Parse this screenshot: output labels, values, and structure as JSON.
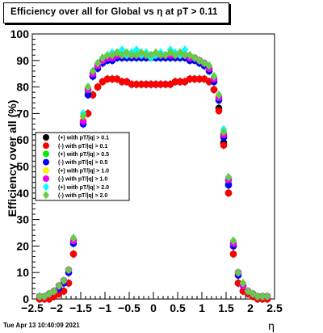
{
  "title": "Efficiency over all for Global vs   η at pT > 0.11",
  "timestamp": "Tue Apr 13 10:40:09 2021",
  "chart_data": {
    "type": "scatter",
    "title": "Efficiency over all for Global vs   η at pT > 0.11",
    "xlabel": "η",
    "ylabel": "Efficiency over all (%)",
    "xlim": [
      -2.5,
      2.5
    ],
    "ylim": [
      0,
      100
    ],
    "x_ticks": [
      "−2.5",
      "−2",
      "−1.5",
      "−1",
      "−0.5",
      "0",
      "0.5",
      "1",
      "1.5",
      "2",
      "2.5"
    ],
    "x_tick_values": [
      -2.5,
      -2,
      -1.5,
      -1,
      -0.5,
      0,
      0.5,
      1,
      1.5,
      2,
      2.5
    ],
    "y_ticks": [
      "0",
      "10",
      "20",
      "30",
      "40",
      "50",
      "60",
      "70",
      "80",
      "90",
      "100"
    ],
    "y_tick_values": [
      0,
      10,
      20,
      30,
      40,
      50,
      60,
      70,
      80,
      90,
      100
    ],
    "grid": false,
    "legend_position": "left-middle",
    "eta": [
      -2.35,
      -2.25,
      -2.15,
      -2.05,
      -1.95,
      -1.85,
      -1.75,
      -1.65,
      -1.55,
      -1.45,
      -1.35,
      -1.25,
      -1.15,
      -1.05,
      -0.95,
      -0.85,
      -0.75,
      -0.65,
      -0.55,
      -0.45,
      -0.35,
      -0.25,
      -0.15,
      -0.05,
      0.05,
      0.15,
      0.25,
      0.35,
      0.45,
      0.55,
      0.65,
      0.75,
      0.85,
      0.95,
      1.05,
      1.15,
      1.25,
      1.35,
      1.45,
      1.55,
      1.65,
      1.75,
      1.85,
      1.95,
      2.05,
      2.15,
      2.25,
      2.35
    ],
    "series": [
      {
        "name": "(+) with pT/|q| > 0.1",
        "color": "#000000",
        "marker": "circle",
        "values": [
          0,
          0,
          0,
          1,
          2,
          3,
          6,
          17,
          42,
          60,
          70,
          77,
          80,
          82,
          83,
          83,
          83,
          82,
          82,
          81,
          81,
          81,
          81,
          81,
          81,
          81,
          81,
          81,
          82,
          82,
          82,
          83,
          83,
          83,
          83,
          82,
          79,
          72,
          59,
          40,
          17,
          6,
          3,
          2,
          1,
          0,
          0,
          0
        ]
      },
      {
        "name": "(-) with pT/|q| > 0.1",
        "color": "#ff0000",
        "marker": "circle",
        "values": [
          0,
          0,
          0,
          1,
          2,
          3,
          6,
          17,
          41,
          60,
          70,
          77,
          80,
          82,
          83,
          83,
          83,
          82,
          82,
          81,
          81,
          81,
          81,
          81,
          81,
          81,
          81,
          81,
          82,
          82,
          82,
          83,
          83,
          83,
          83,
          82,
          79,
          71,
          58,
          40,
          17,
          6,
          3,
          2,
          1,
          0,
          0,
          0
        ]
      },
      {
        "name": "(+) with pT/|q| > 0.5",
        "color": "#00ee00",
        "marker": "circle",
        "values": [
          1,
          1,
          2,
          3,
          4,
          6,
          10,
          21,
          48,
          67,
          78,
          84,
          87,
          89,
          90,
          90,
          91,
          91,
          91,
          91,
          91,
          91,
          91,
          91,
          91,
          91,
          91,
          91,
          91,
          91,
          91,
          90,
          90,
          89,
          88,
          86,
          82,
          75,
          62,
          44,
          20,
          9,
          5,
          3,
          2,
          1,
          1,
          1
        ]
      },
      {
        "name": "(-) with pT/|q| > 0.5",
        "color": "#0000ff",
        "marker": "circle",
        "values": [
          1,
          1,
          2,
          3,
          4,
          6,
          10,
          21,
          47,
          66,
          77,
          84,
          87,
          89,
          90,
          90,
          91,
          91,
          91,
          91,
          91,
          91,
          91,
          91,
          91,
          91,
          91,
          91,
          91,
          91,
          91,
          90,
          90,
          89,
          88,
          86,
          82,
          75,
          61,
          43,
          20,
          9,
          5,
          3,
          2,
          1,
          1,
          1
        ]
      },
      {
        "name": "(+) with pT/|q| > 1.0",
        "color": "#f5f500",
        "marker": "circle",
        "values": [
          1,
          1,
          2,
          3,
          5,
          7,
          11,
          22,
          49,
          68,
          79,
          85,
          88,
          90,
          91,
          91,
          92,
          92,
          92,
          92,
          92,
          92,
          92,
          92,
          92,
          92,
          92,
          92,
          92,
          92,
          92,
          91,
          91,
          90,
          89,
          87,
          83,
          76,
          63,
          45,
          21,
          10,
          5,
          3,
          2,
          1,
          1,
          1
        ]
      },
      {
        "name": "(-) with pT/|q| > 1.0",
        "color": "#ee00ee",
        "marker": "circle",
        "values": [
          1,
          1,
          2,
          3,
          5,
          7,
          11,
          22,
          48,
          67,
          79,
          85,
          88,
          90,
          91,
          91,
          92,
          92,
          92,
          92,
          92,
          92,
          92,
          92,
          92,
          92,
          92,
          92,
          92,
          92,
          92,
          91,
          91,
          90,
          89,
          87,
          83,
          76,
          62,
          45,
          21,
          10,
          5,
          3,
          2,
          1,
          1,
          1
        ]
      },
      {
        "name": "(+) with pT/|q| > 2.0",
        "color": "#00ffff",
        "marker": "diamond",
        "values": [
          1,
          1,
          2,
          3,
          5,
          7,
          11,
          23,
          50,
          70,
          80,
          86,
          89,
          91,
          92,
          93,
          93,
          94,
          92,
          93,
          94,
          92,
          93,
          91,
          92,
          93,
          92,
          94,
          93,
          92,
          94,
          92,
          91,
          90,
          89,
          88,
          84,
          77,
          64,
          46,
          22,
          10,
          6,
          3,
          2,
          1,
          1,
          1
        ]
      },
      {
        "name": "(-) with pT/|q| > 2.0",
        "color": "#66cc44",
        "marker": "diamond",
        "values": [
          1,
          1,
          2,
          3,
          5,
          7,
          11,
          23,
          50,
          69,
          80,
          86,
          89,
          91,
          92,
          92,
          93,
          92,
          93,
          92,
          92,
          93,
          92,
          92,
          93,
          92,
          92,
          93,
          92,
          93,
          92,
          92,
          91,
          90,
          89,
          88,
          84,
          77,
          63,
          46,
          22,
          10,
          6,
          3,
          2,
          1,
          1,
          1
        ]
      }
    ]
  }
}
